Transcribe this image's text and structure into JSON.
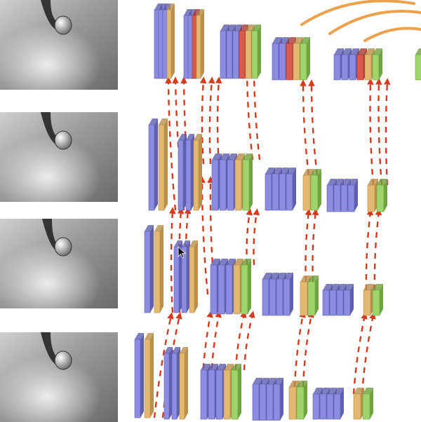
{
  "colors": {
    "conv": "#8c8ce0",
    "conv_dark": "#5f5fb0",
    "pool": "#e3b870",
    "pool_dark": "#b98f4c",
    "relu": "#d85a4f",
    "relu_dark": "#a63a33",
    "norm": "#9fd46c",
    "norm_dark": "#6ea33f",
    "olive": "#b39a55",
    "connector": "#d63a1c",
    "arc": "#eca14c",
    "background": "#ffffff"
  },
  "thumbnails": [
    {
      "icon": "depth-image-thumbnail"
    },
    {
      "icon": "depth-image-thumbnail"
    },
    {
      "icon": "depth-image-thumbnail"
    },
    {
      "icon": "depth-image-thumbnail"
    }
  ],
  "icons": [
    "mouse-cursor-icon"
  ]
}
